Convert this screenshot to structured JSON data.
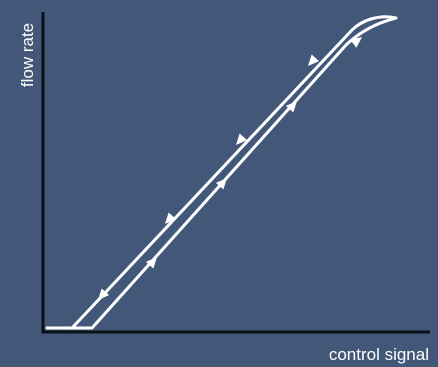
{
  "axes": {
    "y_label": "flow rate",
    "x_label": "control signal"
  },
  "colors": {
    "background": "#435879",
    "axis": "#0b0f17",
    "curve": "#ffffff"
  }
}
